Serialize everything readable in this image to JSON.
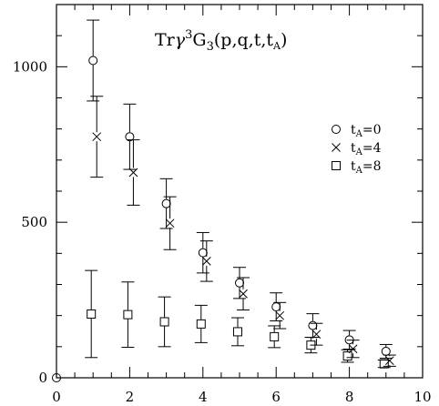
{
  "chart_data": {
    "type": "scatter",
    "title": {
      "prefix": "Tr",
      "gamma": "γ",
      "gamma_sup": "3",
      "g": "G",
      "g_sub": "3",
      "args": "(p,q,t,t",
      "args_sub": "A",
      "close": ")"
    },
    "xlabel": "",
    "ylabel": "",
    "xlim": [
      0,
      10
    ],
    "ylim": [
      0,
      1200
    ],
    "x_ticks": [
      "0",
      "2",
      "4",
      "6",
      "8",
      "10"
    ],
    "y_ticks": [
      "0",
      "500",
      "1000"
    ],
    "grid": false,
    "legend_position": "right",
    "series": [
      {
        "name": "t_A=0",
        "label_main": "t",
        "label_sub": "A",
        "label_tail": "=0",
        "marker": "circle",
        "points": [
          {
            "x": 0,
            "y": 0,
            "err": 0
          },
          {
            "x": 1,
            "y": 1020,
            "err": 130
          },
          {
            "x": 2,
            "y": 775,
            "err": 105
          },
          {
            "x": 3,
            "y": 560,
            "err": 80
          },
          {
            "x": 4,
            "y": 402,
            "err": 65
          },
          {
            "x": 5,
            "y": 305,
            "err": 50
          },
          {
            "x": 6,
            "y": 228,
            "err": 45
          },
          {
            "x": 7,
            "y": 168,
            "err": 38
          },
          {
            "x": 8,
            "y": 122,
            "err": 30
          },
          {
            "x": 9,
            "y": 85,
            "err": 22
          }
        ]
      },
      {
        "name": "t_A=4",
        "label_main": "t",
        "label_sub": "A",
        "label_tail": "=4",
        "marker": "cross",
        "points": [
          {
            "x": 1.1,
            "y": 775,
            "err": 130
          },
          {
            "x": 2.1,
            "y": 660,
            "err": 105
          },
          {
            "x": 3.1,
            "y": 497,
            "err": 85
          },
          {
            "x": 4.1,
            "y": 375,
            "err": 65
          },
          {
            "x": 5.1,
            "y": 270,
            "err": 52
          },
          {
            "x": 6.1,
            "y": 200,
            "err": 42
          },
          {
            "x": 7.1,
            "y": 140,
            "err": 35
          },
          {
            "x": 8.1,
            "y": 93,
            "err": 28
          },
          {
            "x": 9.1,
            "y": 55,
            "err": 18
          }
        ]
      },
      {
        "name": "t_A=8",
        "label_main": "t",
        "label_sub": "A",
        "label_tail": "=8",
        "marker": "square",
        "points": [
          {
            "x": 0.95,
            "y": 205,
            "err": 140
          },
          {
            "x": 1.95,
            "y": 203,
            "err": 105
          },
          {
            "x": 2.95,
            "y": 180,
            "err": 80
          },
          {
            "x": 3.95,
            "y": 173,
            "err": 60
          },
          {
            "x": 4.95,
            "y": 148,
            "err": 45
          },
          {
            "x": 5.95,
            "y": 132,
            "err": 35
          },
          {
            "x": 6.95,
            "y": 105,
            "err": 25
          },
          {
            "x": 7.95,
            "y": 70,
            "err": 20
          },
          {
            "x": 8.95,
            "y": 45,
            "err": 12
          }
        ]
      }
    ]
  }
}
